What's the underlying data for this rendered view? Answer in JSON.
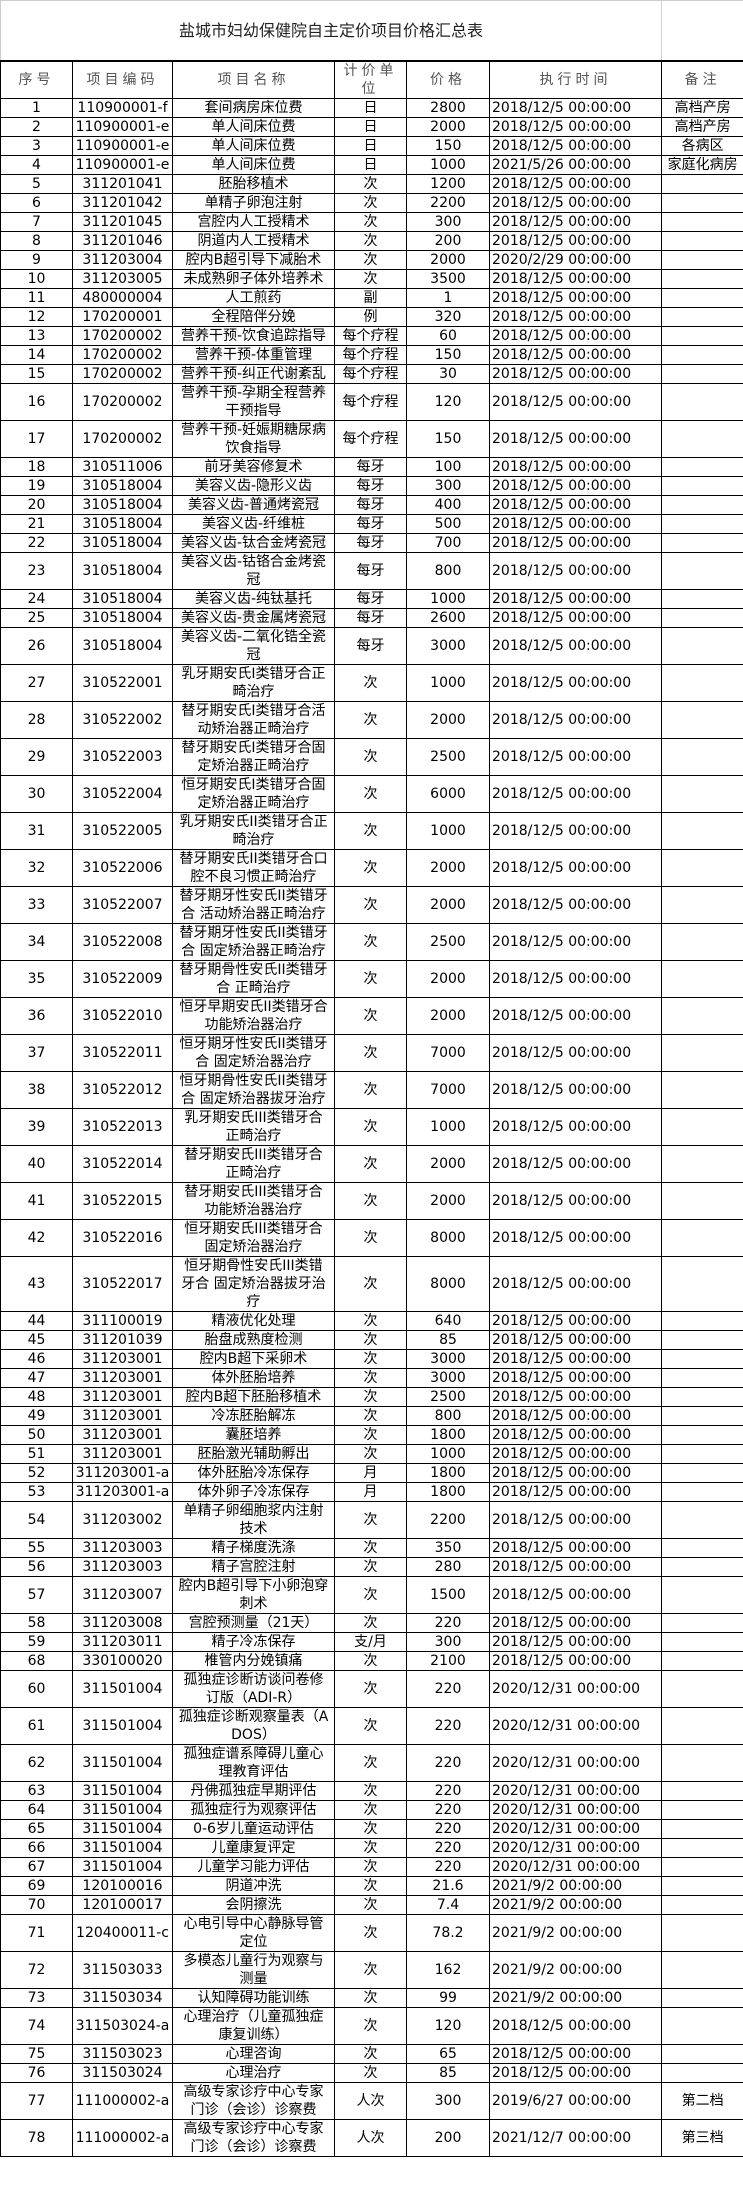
{
  "title": "盐城市妇幼保健院自主定价项目价格汇总表",
  "columns": [
    "序号",
    "项目编码",
    "项目名称",
    "计价单位",
    "价格",
    "执行时间",
    "备注"
  ],
  "rows": [
    [
      "1",
      "110900001-f",
      "套间病房床位费",
      "日",
      "2800",
      "2018/12/5 00:00:00",
      "高档产房"
    ],
    [
      "2",
      "110900001-e",
      "单人间床位费",
      "日",
      "2000",
      "2018/12/5 00:00:00",
      "高档产房"
    ],
    [
      "3",
      "110900001-e",
      "单人间床位费",
      "日",
      "150",
      "2018/12/5 00:00:00",
      "各病区"
    ],
    [
      "4",
      "110900001-e",
      "单人间床位费",
      "日",
      "1000",
      "2021/5/26 00:00:00",
      "家庭化病房"
    ],
    [
      "5",
      "311201041",
      "胚胎移植术",
      "次",
      "1200",
      "2018/12/5 00:00:00",
      ""
    ],
    [
      "6",
      "311201042",
      "单精子卵泡注射",
      "次",
      "2200",
      "2018/12/5 00:00:00",
      ""
    ],
    [
      "7",
      "311201045",
      "宫腔内人工授精术",
      "次",
      "300",
      "2018/12/5 00:00:00",
      ""
    ],
    [
      "8",
      "311201046",
      "阴道内人工授精术",
      "次",
      "200",
      "2018/12/5 00:00:00",
      ""
    ],
    [
      "9",
      "311203004",
      "腔内B超引导下减胎术",
      "次",
      "2000",
      "2020/2/29 00:00:00",
      ""
    ],
    [
      "10",
      "311203005",
      "未成熟卵子体外培养术",
      "次",
      "3500",
      "2018/12/5 00:00:00",
      ""
    ],
    [
      "11",
      "480000004",
      "人工煎药",
      "副",
      "1",
      "2018/12/5 00:00:00",
      ""
    ],
    [
      "12",
      "170200001",
      "全程陪伴分娩",
      "例",
      "320",
      "2018/12/5 00:00:00",
      ""
    ],
    [
      "13",
      "170200002",
      "营养干预-饮食追踪指导",
      "每个疗程",
      "60",
      "2018/12/5 00:00:00",
      ""
    ],
    [
      "14",
      "170200002",
      "营养干预-体重管理",
      "每个疗程",
      "150",
      "2018/12/5 00:00:00",
      ""
    ],
    [
      "15",
      "170200002",
      "营养干预-纠正代谢紊乱",
      "每个疗程",
      "30",
      "2018/12/5 00:00:00",
      ""
    ],
    [
      "16",
      "170200002",
      "营养干预-孕期全程营养干预指导",
      "每个疗程",
      "120",
      "2018/12/5 00:00:00",
      ""
    ],
    [
      "17",
      "170200002",
      "营养干预-妊娠期糖尿病饮食指导",
      "每个疗程",
      "150",
      "2018/12/5 00:00:00",
      ""
    ],
    [
      "18",
      "310511006",
      "前牙美容修复术",
      "每牙",
      "100",
      "2018/12/5 00:00:00",
      ""
    ],
    [
      "19",
      "310518004",
      "美容义齿-隐形义齿",
      "每牙",
      "300",
      "2018/12/5 00:00:00",
      ""
    ],
    [
      "20",
      "310518004",
      "美容义齿-普通烤瓷冠",
      "每牙",
      "400",
      "2018/12/5 00:00:00",
      ""
    ],
    [
      "21",
      "310518004",
      "美容义齿-纤维桩",
      "每牙",
      "500",
      "2018/12/5 00:00:00",
      ""
    ],
    [
      "22",
      "310518004",
      "美容义齿-钛合金烤瓷冠",
      "每牙",
      "700",
      "2018/12/5 00:00:00",
      ""
    ],
    [
      "23",
      "310518004",
      "美容义齿-钴铬合金烤瓷冠",
      "每牙",
      "800",
      "2018/12/5 00:00:00",
      ""
    ],
    [
      "24",
      "310518004",
      "美容义齿-纯钛基托",
      "每牙",
      "1000",
      "2018/12/5 00:00:00",
      ""
    ],
    [
      "25",
      "310518004",
      "美容义齿-贵金属烤瓷冠",
      "每牙",
      "2600",
      "2018/12/5 00:00:00",
      ""
    ],
    [
      "26",
      "310518004",
      "美容义齿-二氧化锆全瓷冠",
      "每牙",
      "3000",
      "2018/12/5 00:00:00",
      ""
    ],
    [
      "27",
      "310522001",
      "乳牙期安氏I类错牙合正畸治疗",
      "次",
      "1000",
      "2018/12/5 00:00:00",
      ""
    ],
    [
      "28",
      "310522002",
      "替牙期安氏I类错牙合活动矫治器正畸治疗",
      "次",
      "2000",
      "2018/12/5 00:00:00",
      ""
    ],
    [
      "29",
      "310522003",
      "替牙期安氏I类错牙合固定矫治器正畸治疗",
      "次",
      "2500",
      "2018/12/5 00:00:00",
      ""
    ],
    [
      "30",
      "310522004",
      "恒牙期安氏I类错牙合固定矫治器正畸治疗",
      "次",
      "6000",
      "2018/12/5 00:00:00",
      ""
    ],
    [
      "31",
      "310522005",
      "乳牙期安氏II类错牙合正畸治疗",
      "次",
      "1000",
      "2018/12/5 00:00:00",
      ""
    ],
    [
      "32",
      "310522006",
      "替牙期安氏II类错牙合口腔不良习惯正畸治疗",
      "次",
      "2000",
      "2018/12/5 00:00:00",
      ""
    ],
    [
      "33",
      "310522007",
      "替牙期牙性安氏II类错牙合 活动矫治器正畸治疗",
      "次",
      "2000",
      "2018/12/5 00:00:00",
      ""
    ],
    [
      "34",
      "310522008",
      "替牙期牙性安氏II类错牙合 固定矫治器正畸治疗",
      "次",
      "2500",
      "2018/12/5 00:00:00",
      ""
    ],
    [
      "35",
      "310522009",
      "替牙期骨性安氏II类错牙合 正畸治疗",
      "次",
      "2000",
      "2018/12/5 00:00:00",
      ""
    ],
    [
      "36",
      "310522010",
      "恒牙早期安氏II类错牙合 功能矫治器治疗",
      "次",
      "2000",
      "2018/12/5 00:00:00",
      ""
    ],
    [
      "37",
      "310522011",
      "恒牙期牙性安氏II类错牙合 固定矫治器治疗",
      "次",
      "7000",
      "2018/12/5 00:00:00",
      ""
    ],
    [
      "38",
      "310522012",
      "恒牙期骨性安氏II类错牙合 固定矫治器拔牙治疗",
      "次",
      "7000",
      "2018/12/5 00:00:00",
      ""
    ],
    [
      "39",
      "310522013",
      "乳牙期安氏III类错牙合 正畸治疗",
      "次",
      "1000",
      "2018/12/5 00:00:00",
      ""
    ],
    [
      "40",
      "310522014",
      "替牙期安氏III类错牙合 正畸治疗",
      "次",
      "2000",
      "2018/12/5 00:00:00",
      ""
    ],
    [
      "41",
      "310522015",
      "替牙期安氏III类错牙合 功能矫治器治疗",
      "次",
      "2000",
      "2018/12/5 00:00:00",
      ""
    ],
    [
      "42",
      "310522016",
      "恒牙期安氏III类错牙合 固定矫治器治疗",
      "次",
      "8000",
      "2018/12/5 00:00:00",
      ""
    ],
    [
      "43",
      "310522017",
      "恒牙期骨性安氏III类错牙合 固定矫治器拔牙治疗",
      "次",
      "8000",
      "2018/12/5 00:00:00",
      ""
    ],
    [
      "44",
      "311100019",
      "精液优化处理",
      "次",
      "640",
      "2018/12/5 00:00:00",
      ""
    ],
    [
      "45",
      "311201039",
      "胎盘成熟度检测",
      "次",
      "85",
      "2018/12/5 00:00:00",
      ""
    ],
    [
      "46",
      "311203001",
      "腔内B超下采卵术",
      "次",
      "3000",
      "2018/12/5 00:00:00",
      ""
    ],
    [
      "47",
      "311203001",
      "体外胚胎培养",
      "次",
      "3000",
      "2018/12/5 00:00:00",
      ""
    ],
    [
      "48",
      "311203001",
      "腔内B超下胚胎移植术",
      "次",
      "2500",
      "2018/12/5 00:00:00",
      ""
    ],
    [
      "49",
      "311203001",
      "冷冻胚胎解冻",
      "次",
      "800",
      "2018/12/5 00:00:00",
      ""
    ],
    [
      "50",
      "311203001",
      "囊胚培养",
      "次",
      "1800",
      "2018/12/5 00:00:00",
      ""
    ],
    [
      "51",
      "311203001",
      "胚胎激光辅助孵出",
      "次",
      "1000",
      "2018/12/5 00:00:00",
      ""
    ],
    [
      "52",
      "311203001-a",
      "体外胚胎冷冻保存",
      "月",
      "1800",
      "2018/12/5 00:00:00",
      ""
    ],
    [
      "53",
      "311203001-a",
      "体外卵子冷冻保存",
      "月",
      "1800",
      "2018/12/5 00:00:00",
      ""
    ],
    [
      "54",
      "311203002",
      "单精子卵细胞浆内注射技术",
      "次",
      "2200",
      "2018/12/5 00:00:00",
      ""
    ],
    [
      "55",
      "311203003",
      "精子梯度洗涤",
      "次",
      "350",
      "2018/12/5 00:00:00",
      ""
    ],
    [
      "56",
      "311203003",
      "精子宫腔注射",
      "次",
      "280",
      "2018/12/5 00:00:00",
      ""
    ],
    [
      "57",
      "311203007",
      "腔内B超引导下小卵泡穿刺术",
      "次",
      "1500",
      "2018/12/5 00:00:00",
      ""
    ],
    [
      "58",
      "311203008",
      "宫腔预测量（21天）",
      "次",
      "220",
      "2018/12/5 00:00:00",
      ""
    ],
    [
      "59",
      "311203011",
      "精子冷冻保存",
      "支/月",
      "300",
      "2018/12/5 00:00:00",
      ""
    ],
    [
      "68",
      "330100020",
      "椎管内分娩镇痛",
      "次",
      "2100",
      "2018/12/5 00:00:00",
      ""
    ],
    [
      "60",
      "311501004",
      "孤独症诊断访谈问卷修订版（ADI-R）",
      "次",
      "220",
      "2020/12/31 00:00:00",
      ""
    ],
    [
      "61",
      "311501004",
      "孤独症诊断观察量表（ADOS）",
      "次",
      "220",
      "2020/12/31 00:00:00",
      ""
    ],
    [
      "62",
      "311501004",
      "孤独症谱系障碍儿童心理教育评估",
      "次",
      "220",
      "2020/12/31 00:00:00",
      ""
    ],
    [
      "63",
      "311501004",
      "丹佛孤独症早期评估",
      "次",
      "220",
      "2020/12/31 00:00:00",
      ""
    ],
    [
      "64",
      "311501004",
      "孤独症行为观察评估",
      "次",
      "220",
      "2020/12/31 00:00:00",
      ""
    ],
    [
      "65",
      "311501004",
      "0-6岁儿童运动评估",
      "次",
      "220",
      "2020/12/31 00:00:00",
      ""
    ],
    [
      "66",
      "311501004",
      "儿童康复评定",
      "次",
      "220",
      "2020/12/31 00:00:00",
      ""
    ],
    [
      "67",
      "311501004",
      "儿童学习能力评估",
      "次",
      "220",
      "2020/12/31 00:00:00",
      ""
    ],
    [
      "69",
      "120100016",
      "阴道冲洗",
      "次",
      "21.6",
      "2021/9/2 00:00:00",
      ""
    ],
    [
      "70",
      "120100017",
      "会阴擦洗",
      "次",
      "7.4",
      "2021/9/2 00:00:00",
      ""
    ],
    [
      "71",
      "120400011-c",
      "心电引导中心静脉导管定位",
      "次",
      "78.2",
      "2021/9/2 00:00:00",
      ""
    ],
    [
      "72",
      "311503033",
      "多模态儿童行为观察与测量",
      "次",
      "162",
      "2021/9/2 00:00:00",
      ""
    ],
    [
      "73",
      "311503034",
      "认知障碍功能训练",
      "次",
      "99",
      "2021/9/2 00:00:00",
      ""
    ],
    [
      "74",
      "311503024-a",
      "心理治疗（儿童孤独症康复训练）",
      "次",
      "120",
      "2018/12/5 00:00:00",
      ""
    ],
    [
      "75",
      "311503023",
      "心理咨询",
      "次",
      "65",
      "2018/12/5 00:00:00",
      ""
    ],
    [
      "76",
      "311503024",
      "心理治疗",
      "次",
      "85",
      "2018/12/5 00:00:00",
      ""
    ],
    [
      "77",
      "111000002-a",
      "高级专家诊疗中心专家门诊（会诊）诊察费",
      "人次",
      "300",
      "2019/6/27 00:00:00",
      "第二档"
    ],
    [
      "78",
      "111000002-a",
      "高级专家诊疗中心专家门诊（会诊）诊察费",
      "人次",
      "200",
      "2021/12/7 00:00:00",
      "第三档"
    ]
  ]
}
